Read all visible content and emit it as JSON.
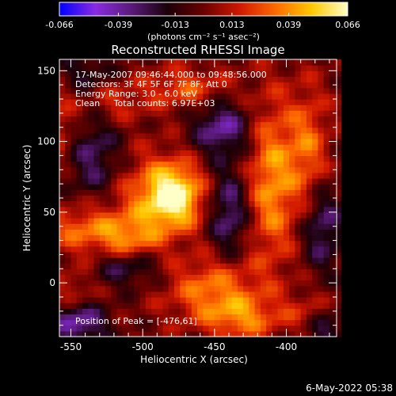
{
  "chart_data": {
    "type": "heatmap",
    "title": "Reconstructed RHESSI Image",
    "xlabel": "Heliocentric X (arcsec)",
    "ylabel": "Heliocentric Y (arcsec)",
    "xlim": [
      -558,
      -365
    ],
    "ylim": [
      -38,
      158
    ],
    "xticks": [
      -550,
      -500,
      -450,
      -400
    ],
    "yticks": [
      0,
      50,
      100,
      150
    ],
    "colorbar": {
      "range": [
        -0.066,
        0.066
      ],
      "ticks": [
        "-0.066",
        "-0.039",
        "-0.013",
        "0.013",
        "0.039",
        "0.066"
      ],
      "tick_values": [
        -0.066,
        -0.039,
        -0.013,
        0.013,
        0.039,
        0.066
      ],
      "unit_label": "(photons cm⁻² s⁻¹ asec⁻²)",
      "colormap": [
        "#0000ff",
        "#8a2be2",
        "#5a1a7a",
        "#1a0008",
        "#6a0000",
        "#d01800",
        "#ff6a00",
        "#ffc800",
        "#ffffc8"
      ]
    },
    "annotations": [
      "17-May-2007 09:46:44.000 to 09:48:56.000",
      "Detectors: 3F 4F 5F 6F 7F 8F, Att 0",
      "Energy Range: 3.0 - 6.0 keV",
      "Clean     Total counts: 6.97E+03"
    ],
    "peak_label": "Position of Peak = [-476,61]",
    "peak": [
      -476,
      61
    ],
    "features": [
      {
        "x": -478,
        "y": 62,
        "amp": 0.066,
        "sx": 14,
        "sy": 16
      },
      {
        "x": -500,
        "y": 55,
        "amp": 0.022,
        "sx": 18,
        "sy": 26
      },
      {
        "x": -410,
        "y": 72,
        "amp": 0.04,
        "sx": 12,
        "sy": 40
      },
      {
        "x": -385,
        "y": 95,
        "amp": 0.03,
        "sx": 10,
        "sy": 30
      },
      {
        "x": -540,
        "y": 38,
        "amp": 0.032,
        "sx": 20,
        "sy": 12
      },
      {
        "x": -510,
        "y": 30,
        "amp": 0.024,
        "sx": 14,
        "sy": 10
      },
      {
        "x": -450,
        "y": -5,
        "amp": 0.036,
        "sx": 22,
        "sy": 16
      },
      {
        "x": -430,
        "y": -25,
        "amp": 0.03,
        "sx": 18,
        "sy": 10
      },
      {
        "x": -470,
        "y": 138,
        "amp": 0.026,
        "sx": 22,
        "sy": 10
      },
      {
        "x": -520,
        "y": 128,
        "amp": 0.018,
        "sx": 14,
        "sy": 10
      },
      {
        "x": -560,
        "y": 110,
        "amp": 0.022,
        "sx": 12,
        "sy": 20
      },
      {
        "x": -380,
        "y": -20,
        "amp": 0.02,
        "sx": 14,
        "sy": 10
      },
      {
        "x": -548,
        "y": -5,
        "amp": 0.016,
        "sx": 10,
        "sy": 10
      },
      {
        "x": -535,
        "y": 90,
        "amp": -0.03,
        "sx": 14,
        "sy": 22
      },
      {
        "x": -445,
        "y": 110,
        "amp": -0.038,
        "sx": 14,
        "sy": 14
      },
      {
        "x": -440,
        "y": 50,
        "amp": -0.034,
        "sx": 10,
        "sy": 22
      },
      {
        "x": -375,
        "y": 40,
        "amp": -0.032,
        "sx": 10,
        "sy": 22
      },
      {
        "x": -510,
        "y": 12,
        "amp": -0.03,
        "sx": 16,
        "sy": 10
      },
      {
        "x": -545,
        "y": -28,
        "amp": -0.042,
        "sx": 14,
        "sy": 10
      },
      {
        "x": -372,
        "y": -30,
        "amp": -0.03,
        "sx": 10,
        "sy": 12
      },
      {
        "x": -540,
        "y": 150,
        "amp": -0.02,
        "sx": 14,
        "sy": 10
      }
    ]
  },
  "timestamp": "6-May-2022 05:38"
}
